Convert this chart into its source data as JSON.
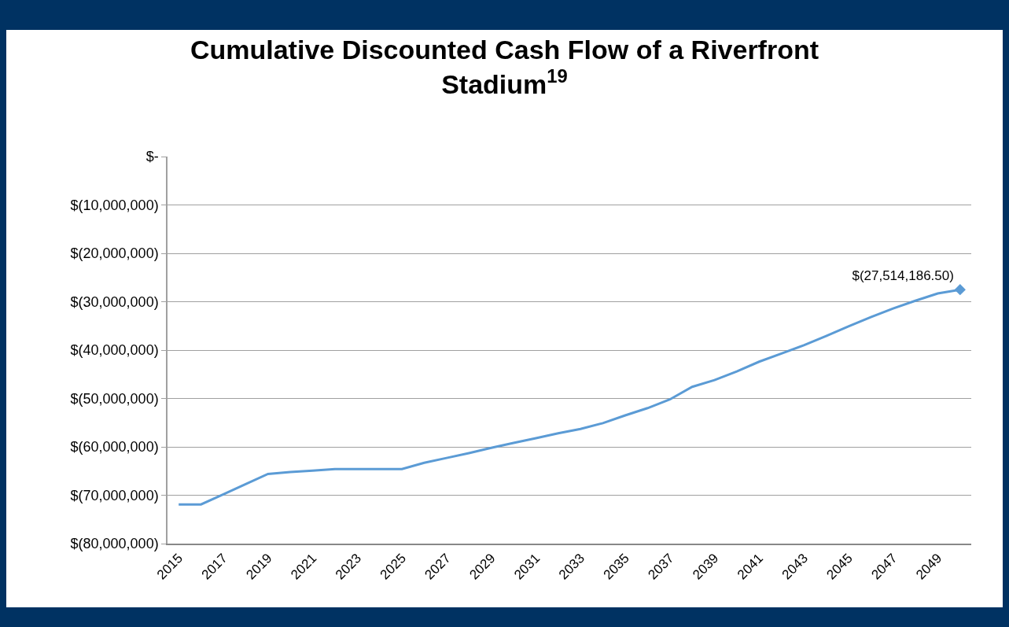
{
  "chart_data": {
    "type": "line",
    "title": "Cumulative Discounted Cash Flow of a Riverfront Stadium$^{19}$",
    "categories": [
      "2015",
      null,
      "2017",
      null,
      "2019",
      null,
      "2021",
      null,
      "2023",
      null,
      "2025",
      null,
      "2027",
      null,
      "2029",
      null,
      "2031",
      null,
      "2033",
      null,
      "2035",
      null,
      "2037",
      null,
      "2039",
      null,
      "2041",
      null,
      "2043",
      null,
      "2045",
      null,
      "2047",
      null,
      "2049",
      null
    ],
    "series": [
      {
        "color": "#5b9bd5",
        "values": [
          -71900000,
          -71900000,
          -69800000,
          -67700000,
          -65600000,
          -65200000,
          -64900000,
          -64600000,
          -64600000,
          -64600000,
          -64600000,
          -63300000,
          -62300000,
          -61300000,
          -60200000,
          -59200000,
          -58200000,
          -57200000,
          -56300000,
          -55100000,
          -53500000,
          -52000000,
          -50200000,
          -47600000,
          -46200000,
          -44400000,
          -42400000,
          -40700000,
          -39000000,
          -37100000,
          -35100000,
          -33200000,
          -31400000,
          -29800000,
          -28300000,
          -27514186.5
        ],
        "value_labels": [
          null,
          null,
          null,
          null,
          null,
          null,
          null,
          null,
          null,
          null,
          null,
          null,
          null,
          null,
          null,
          null,
          null,
          null,
          null,
          null,
          null,
          null,
          null,
          null,
          null,
          null,
          null,
          null,
          null,
          null,
          null,
          null,
          null,
          null,
          null,
          "$(27,514,186.50)"
        ]
      }
    ],
    "ylim": [
      -80000000,
      0
    ],
    "yticks": [
      {
        "value": 0,
        "label": "$-"
      },
      {
        "value": -10000000,
        "label": "$(10,000,000)"
      },
      {
        "value": -20000000,
        "label": "$(20,000,000)"
      },
      {
        "value": -30000000,
        "label": "$(30,000,000)"
      },
      {
        "value": -40000000,
        "label": "$(40,000,000)"
      },
      {
        "value": -50000000,
        "label": "$(50,000,000)"
      },
      {
        "value": -60000000,
        "label": "$(60,000,000)"
      },
      {
        "value": -70000000,
        "label": "$(70,000,000)"
      },
      {
        "value": -80000000,
        "label": "$(80,000,000)"
      }
    ],
    "grid": "y",
    "line_style": "solid",
    "legend": false
  }
}
